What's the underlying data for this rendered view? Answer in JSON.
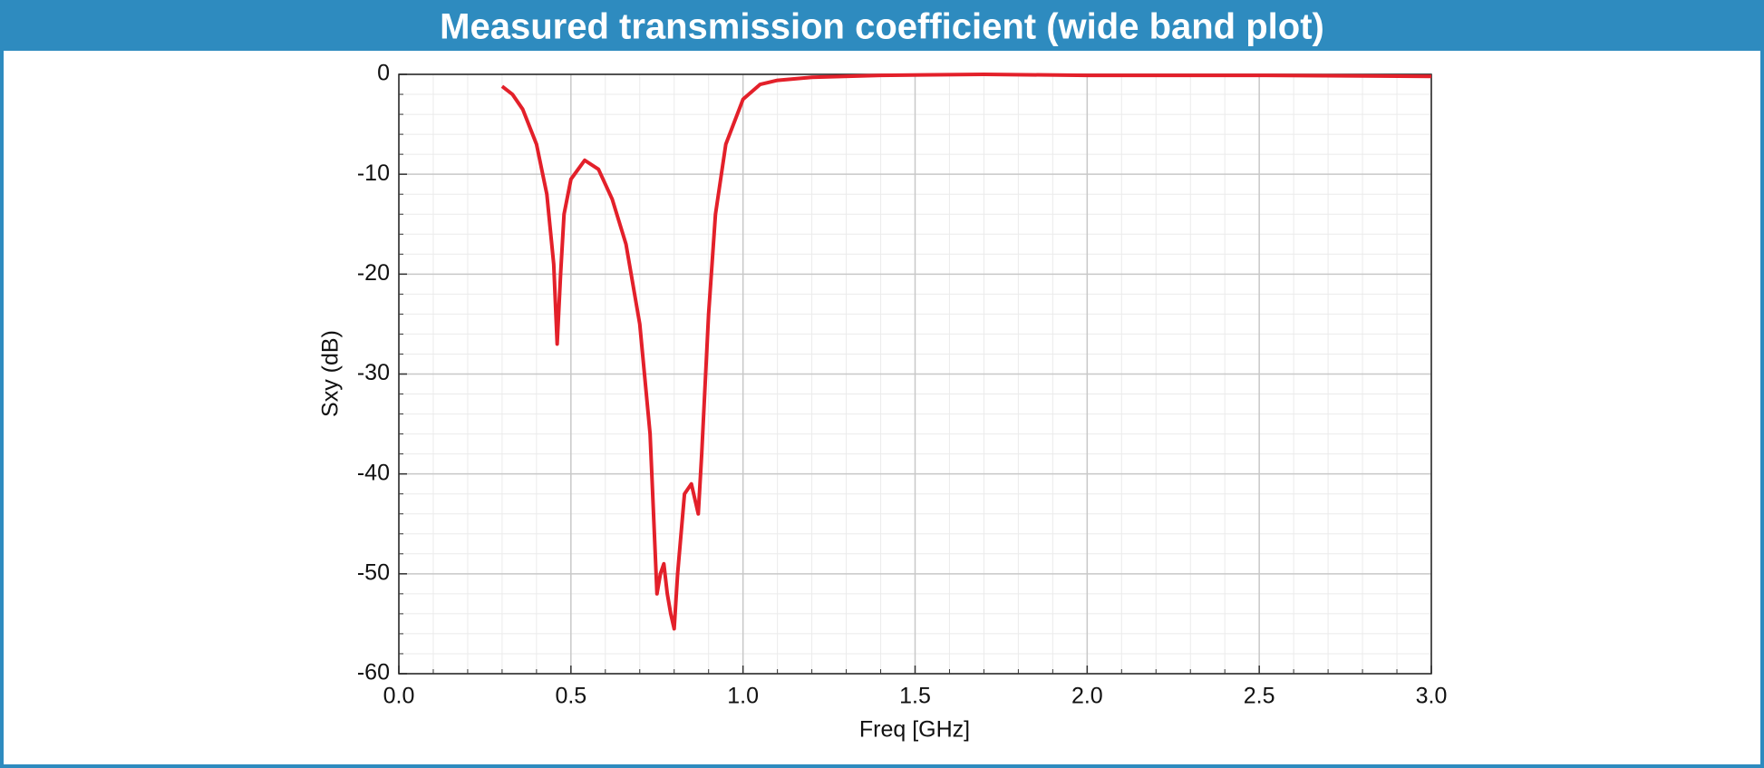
{
  "chart_data": {
    "type": "line",
    "title": "Measured transmission coefficient (wide band plot)",
    "x_label": "Freq [GHz]",
    "y_label": "Sxy (dB)",
    "x": [
      0.3,
      0.33,
      0.36,
      0.4,
      0.43,
      0.45,
      0.46,
      0.47,
      0.48,
      0.5,
      0.54,
      0.58,
      0.62,
      0.66,
      0.7,
      0.73,
      0.75,
      0.76,
      0.77,
      0.78,
      0.79,
      0.8,
      0.81,
      0.83,
      0.85,
      0.87,
      0.88,
      0.9,
      0.92,
      0.95,
      1.0,
      1.05,
      1.1,
      1.2,
      1.4,
      1.7,
      2.0,
      2.5,
      3.0
    ],
    "series": [
      {
        "name": "Sxy",
        "color": "#e3202a",
        "values": [
          -1.2,
          -2,
          -3.5,
          -7,
          -12,
          -19,
          -27,
          -20,
          -14,
          -10.5,
          -8.6,
          -9.5,
          -12.5,
          -17,
          -25,
          -36,
          -52,
          -50,
          -49,
          -52,
          -54,
          -55.5,
          -50,
          -42,
          -41,
          -44,
          -38,
          -24,
          -14,
          -7,
          -2.5,
          -1,
          -0.6,
          -0.3,
          -0.1,
          0,
          -0.1,
          -0.1,
          -0.2
        ]
      }
    ],
    "xlim": [
      0,
      3
    ],
    "ylim": [
      -60,
      0
    ],
    "xticks": [
      {
        "value": 0,
        "label": "0.0"
      },
      0.5,
      {
        "value": 1,
        "label": "1.0"
      },
      1.5,
      {
        "value": 2,
        "label": "2.0"
      },
      2.5,
      {
        "value": 3,
        "label": "3.0"
      }
    ],
    "yticks": [
      -60,
      -50,
      -40,
      -30,
      -20,
      -10,
      0
    ],
    "grid": true,
    "minor_grid": true
  }
}
